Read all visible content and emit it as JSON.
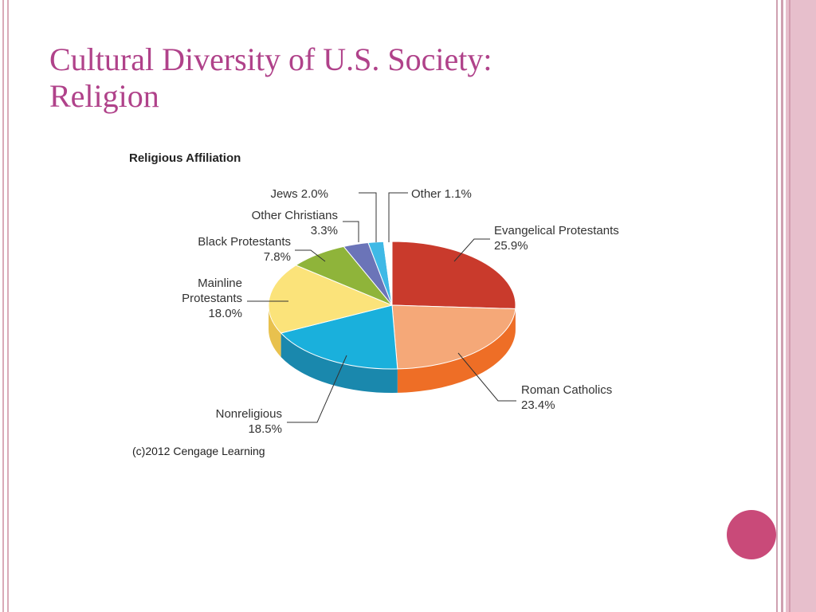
{
  "slide": {
    "title_line1": "Cultural Diversity of U.S. Society:",
    "title_line2": "Religion"
  },
  "chart_data": {
    "type": "pie",
    "title": "Religious Affiliation",
    "source": "(c)2012 Cengage Learning",
    "slices": [
      {
        "label": "Evangelical Protestants",
        "display": "Evangelical Protestants\n25.9%",
        "value": 25.9,
        "color": "#c93a2c",
        "side": "#b03226"
      },
      {
        "label": "Roman Catholics",
        "display": "Roman Catholics\n23.4%",
        "value": 23.4,
        "color": "#f5a878",
        "side": "#ee6e26"
      },
      {
        "label": "Nonreligious",
        "display": "Nonreligious\n18.5%",
        "value": 18.5,
        "color": "#1ab0dc",
        "side": "#1a88ad"
      },
      {
        "label": "Mainline Protestants",
        "display": "Mainline\nProtestants\n18.0%",
        "value": 18.0,
        "color": "#fbe37a",
        "side": "#e8c14e"
      },
      {
        "label": "Black Protestants",
        "display": "Black Protestants\n7.8%",
        "value": 7.8,
        "color": "#8fb43a",
        "side": "#6e8f2a"
      },
      {
        "label": "Other Christians",
        "display": "Other Christians\n3.3%",
        "value": 3.3,
        "color": "#6b74b8",
        "side": "#545c98"
      },
      {
        "label": "Jews",
        "display": "Jews 2.0%",
        "value": 2.0,
        "color": "#3fb9e6",
        "side": "#2c97c0"
      },
      {
        "label": "Other",
        "display": "Other 1.1%",
        "value": 1.1,
        "color": "#ffffff",
        "side": "#dddddd"
      }
    ]
  }
}
